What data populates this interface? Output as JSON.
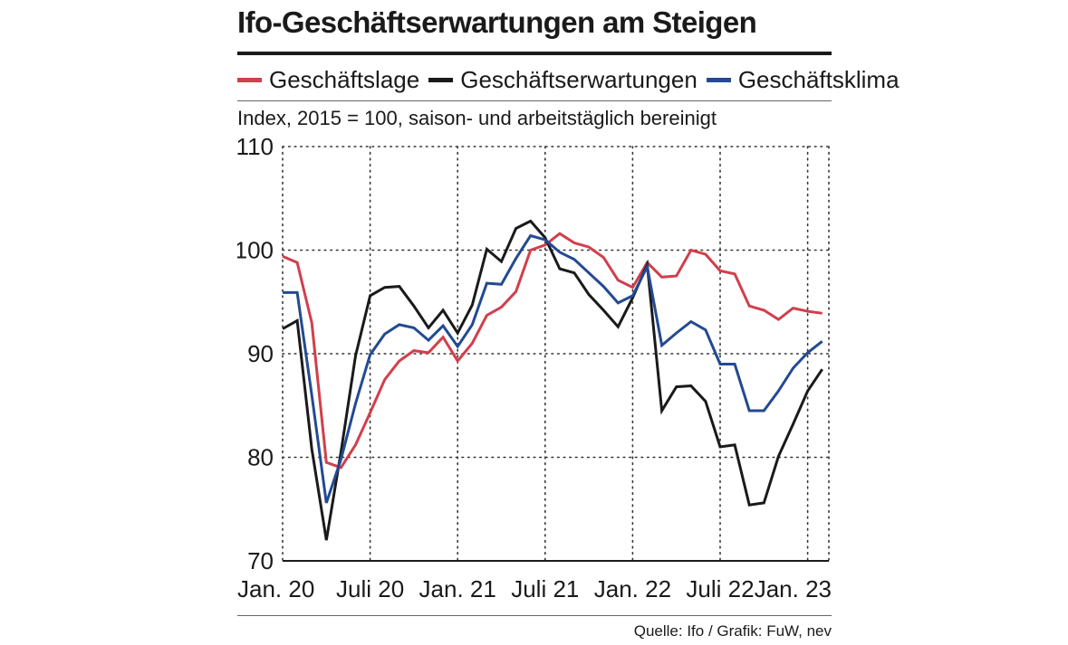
{
  "header": {
    "title": "Ifo-Geschäftserwartungen am Steigen",
    "subtitle": "Index, 2015 = 100, saison- und arbeitstäglich bereinigt"
  },
  "footer": {
    "source": "Quelle: Ifo / Grafik: FuW, nev"
  },
  "chart_data": {
    "type": "line",
    "title": "Ifo-Geschäftserwartungen am Steigen",
    "subtitle": "Index, 2015 = 100, saison- und arbeitstäglich bereinigt",
    "xlabel": "",
    "ylabel": "",
    "ylim": [
      70,
      110
    ],
    "yticks": [
      70,
      80,
      90,
      100,
      110
    ],
    "x_tick_labels": [
      {
        "label": "Jan. 20",
        "index": 0
      },
      {
        "label": "Juli 20",
        "index": 6
      },
      {
        "label": "Jan. 21",
        "index": 12
      },
      {
        "label": "Juli 21",
        "index": 18
      },
      {
        "label": "Jan. 22",
        "index": 24
      },
      {
        "label": "Juli 22",
        "index": 30
      },
      {
        "label": "Jan. 23",
        "index": 36
      }
    ],
    "grid": true,
    "legend_position": "top",
    "series": [
      {
        "name": "Geschäftslage",
        "color": "#d13f4b",
        "values": [
          99.4,
          98.8,
          93.0,
          79.5,
          79.0,
          81.2,
          84.3,
          87.5,
          89.3,
          90.3,
          90.1,
          91.6,
          89.3,
          91.0,
          93.7,
          94.5,
          96.0,
          100.0,
          100.5,
          101.6,
          100.7,
          100.3,
          99.3,
          97.1,
          96.4,
          98.8,
          97.4,
          97.5,
          100.0,
          99.6,
          98.0,
          97.7,
          94.6,
          94.2,
          93.3,
          94.4,
          94.1,
          93.9
        ]
      },
      {
        "name": "Geschäftserwartungen",
        "color": "#1a1a1a",
        "values": [
          92.4,
          93.2,
          80.8,
          72.0,
          80.5,
          89.8,
          95.6,
          96.4,
          96.5,
          94.6,
          92.5,
          94.2,
          92.0,
          94.7,
          100.1,
          98.9,
          102.1,
          102.8,
          101.2,
          98.2,
          97.8,
          95.7,
          94.2,
          92.6,
          95.4,
          98.6,
          84.5,
          86.8,
          86.9,
          85.4,
          81.0,
          81.2,
          75.4,
          75.6,
          80.1,
          83.2,
          86.4,
          88.5
        ]
      },
      {
        "name": "Geschäftsklima",
        "color": "#234a92",
        "values": [
          95.9,
          95.9,
          86.0,
          75.6,
          79.8,
          85.2,
          89.9,
          91.9,
          92.8,
          92.5,
          91.3,
          92.7,
          90.7,
          92.8,
          96.8,
          96.7,
          99.2,
          101.4,
          101.0,
          99.8,
          99.1,
          97.8,
          96.5,
          94.9,
          95.6,
          98.4,
          90.8,
          92.0,
          93.1,
          92.3,
          89.0,
          89.0,
          84.5,
          84.5,
          86.4,
          88.6,
          90.1,
          91.2
        ]
      }
    ]
  }
}
